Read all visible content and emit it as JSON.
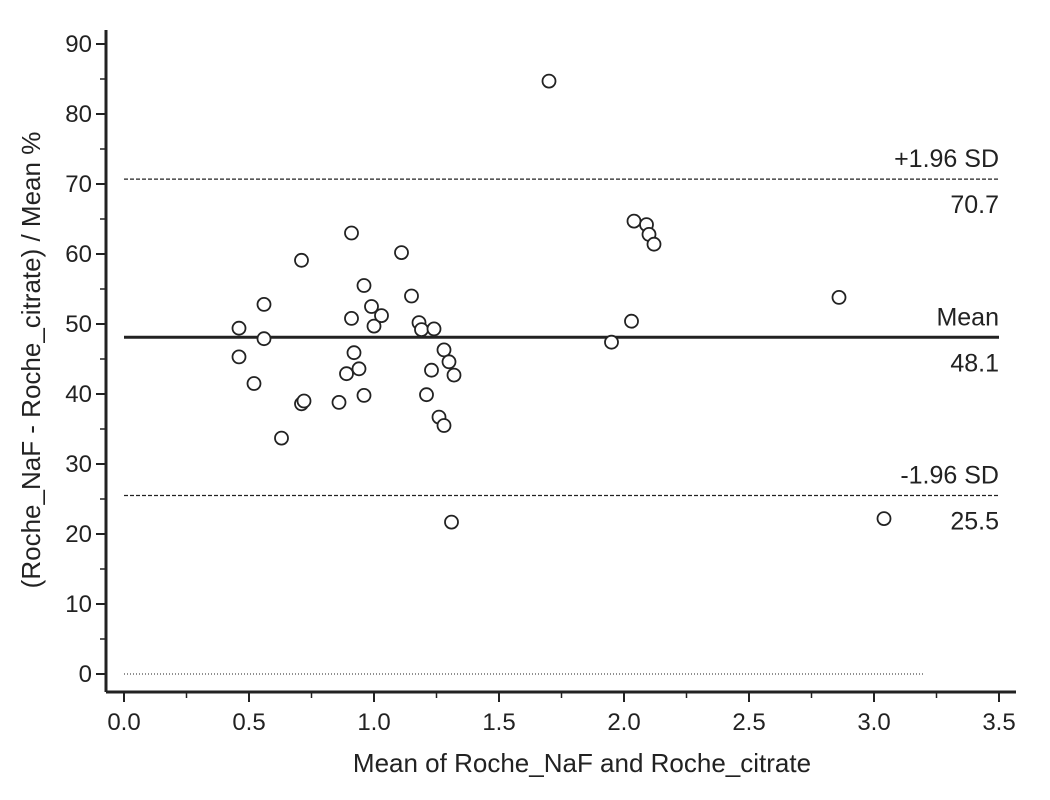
{
  "chart_data": {
    "type": "scatter",
    "xlabel": "Mean of Roche_NaF and Roche_citrate",
    "ylabel": "(Roche_NaF - Roche_citrate) / Mean %",
    "xlim": [
      0,
      3.5
    ],
    "ylim": [
      0,
      90
    ],
    "x_ticks": [
      "0.0",
      "0.5",
      "1.0",
      "1.5",
      "2.0",
      "2.5",
      "3.0",
      "3.5"
    ],
    "y_ticks": [
      "0",
      "10",
      "20",
      "30",
      "40",
      "50",
      "60",
      "70",
      "80",
      "90"
    ],
    "grid": false,
    "reference_lines": [
      {
        "id": "upper",
        "label": "+1.96 SD",
        "value_label": "70.7",
        "value": 70.7,
        "style": "dashed"
      },
      {
        "id": "mean",
        "label": "Mean",
        "value_label": "48.1",
        "value": 48.1,
        "style": "solid"
      },
      {
        "id": "lower",
        "label": "-1.96 SD",
        "value_label": "25.5",
        "value": 25.5,
        "style": "dashed"
      },
      {
        "id": "zero",
        "label": "",
        "value_label": "",
        "value": 0,
        "style": "dotted"
      }
    ],
    "points": [
      {
        "x": 0.46,
        "y": 49.4
      },
      {
        "x": 0.46,
        "y": 45.3
      },
      {
        "x": 0.52,
        "y": 41.5
      },
      {
        "x": 0.56,
        "y": 52.8
      },
      {
        "x": 0.56,
        "y": 47.9
      },
      {
        "x": 0.63,
        "y": 33.7
      },
      {
        "x": 0.71,
        "y": 59.1
      },
      {
        "x": 0.71,
        "y": 38.6
      },
      {
        "x": 0.72,
        "y": 39.0
      },
      {
        "x": 0.86,
        "y": 38.8
      },
      {
        "x": 0.89,
        "y": 42.9
      },
      {
        "x": 0.91,
        "y": 63.0
      },
      {
        "x": 0.91,
        "y": 50.8
      },
      {
        "x": 0.92,
        "y": 45.9
      },
      {
        "x": 0.94,
        "y": 43.6
      },
      {
        "x": 0.96,
        "y": 55.5
      },
      {
        "x": 0.96,
        "y": 39.8
      },
      {
        "x": 0.99,
        "y": 52.5
      },
      {
        "x": 1.0,
        "y": 49.7
      },
      {
        "x": 1.03,
        "y": 51.2
      },
      {
        "x": 1.11,
        "y": 60.2
      },
      {
        "x": 1.15,
        "y": 54.0
      },
      {
        "x": 1.18,
        "y": 50.2
      },
      {
        "x": 1.19,
        "y": 49.2
      },
      {
        "x": 1.21,
        "y": 39.9
      },
      {
        "x": 1.23,
        "y": 43.4
      },
      {
        "x": 1.24,
        "y": 49.3
      },
      {
        "x": 1.26,
        "y": 36.7
      },
      {
        "x": 1.28,
        "y": 46.3
      },
      {
        "x": 1.28,
        "y": 35.5
      },
      {
        "x": 1.3,
        "y": 44.6
      },
      {
        "x": 1.31,
        "y": 21.7
      },
      {
        "x": 1.32,
        "y": 42.7
      },
      {
        "x": 1.7,
        "y": 84.7
      },
      {
        "x": 1.95,
        "y": 47.4
      },
      {
        "x": 2.03,
        "y": 50.4
      },
      {
        "x": 2.04,
        "y": 64.7
      },
      {
        "x": 2.09,
        "y": 64.2
      },
      {
        "x": 2.1,
        "y": 62.8
      },
      {
        "x": 2.12,
        "y": 61.4
      },
      {
        "x": 2.86,
        "y": 53.8
      },
      {
        "x": 3.04,
        "y": 22.2
      }
    ]
  }
}
